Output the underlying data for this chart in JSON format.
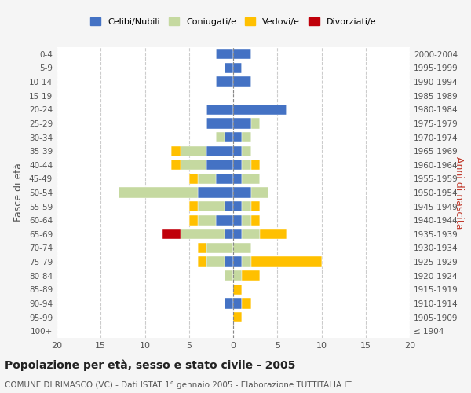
{
  "age_groups": [
    "100+",
    "95-99",
    "90-94",
    "85-89",
    "80-84",
    "75-79",
    "70-74",
    "65-69",
    "60-64",
    "55-59",
    "50-54",
    "45-49",
    "40-44",
    "35-39",
    "30-34",
    "25-29",
    "20-24",
    "15-19",
    "10-14",
    "5-9",
    "0-4"
  ],
  "birth_years": [
    "≤ 1904",
    "1905-1909",
    "1910-1914",
    "1915-1919",
    "1920-1924",
    "1925-1929",
    "1930-1934",
    "1935-1939",
    "1940-1944",
    "1945-1949",
    "1950-1954",
    "1955-1959",
    "1960-1964",
    "1965-1969",
    "1970-1974",
    "1975-1979",
    "1980-1984",
    "1985-1989",
    "1990-1994",
    "1995-1999",
    "2000-2004"
  ],
  "male_celibi": [
    0,
    0,
    1,
    0,
    0,
    1,
    0,
    1,
    2,
    1,
    4,
    2,
    3,
    3,
    1,
    3,
    3,
    0,
    2,
    1,
    2
  ],
  "male_coniugati": [
    0,
    0,
    0,
    0,
    1,
    2,
    3,
    5,
    2,
    3,
    9,
    2,
    3,
    3,
    1,
    0,
    0,
    0,
    0,
    0,
    0
  ],
  "male_vedovi": [
    0,
    0,
    0,
    0,
    0,
    1,
    1,
    0,
    1,
    1,
    0,
    1,
    1,
    1,
    0,
    0,
    0,
    0,
    0,
    0,
    0
  ],
  "male_divorziati": [
    0,
    0,
    0,
    0,
    0,
    0,
    0,
    2,
    0,
    0,
    0,
    0,
    0,
    0,
    0,
    0,
    0,
    0,
    0,
    0,
    0
  ],
  "female_celibi": [
    0,
    0,
    1,
    0,
    0,
    1,
    0,
    1,
    1,
    1,
    2,
    1,
    1,
    1,
    1,
    2,
    6,
    0,
    2,
    1,
    2
  ],
  "female_coniugati": [
    0,
    0,
    0,
    0,
    1,
    1,
    2,
    2,
    1,
    1,
    2,
    2,
    1,
    1,
    1,
    1,
    0,
    0,
    0,
    0,
    0
  ],
  "female_vedovi": [
    0,
    1,
    1,
    1,
    2,
    8,
    0,
    3,
    1,
    1,
    0,
    0,
    1,
    0,
    0,
    0,
    0,
    0,
    0,
    0,
    0
  ],
  "female_divorziati": [
    0,
    0,
    0,
    0,
    0,
    0,
    0,
    0,
    0,
    0,
    0,
    0,
    0,
    0,
    0,
    0,
    0,
    0,
    0,
    0,
    0
  ],
  "color_celibi": "#4472c4",
  "color_coniugati": "#c5d9a0",
  "color_vedovi": "#ffc000",
  "color_divorziati": "#c0000a",
  "title": "Popolazione per età, sesso e stato civile - 2005",
  "subtitle": "COMUNE DI RIMASCO (VC) - Dati ISTAT 1° gennaio 2005 - Elaborazione TUTTITALIA.IT",
  "ylabel_left": "Fasce di età",
  "ylabel_right": "Anni di nascita",
  "xlim": 20,
  "legend_labels": [
    "Celibi/Nubili",
    "Coniugati/e",
    "Vedovi/e",
    "Divorziati/e"
  ],
  "bg_color": "#f5f5f5",
  "plot_bg_color": "#ffffff"
}
